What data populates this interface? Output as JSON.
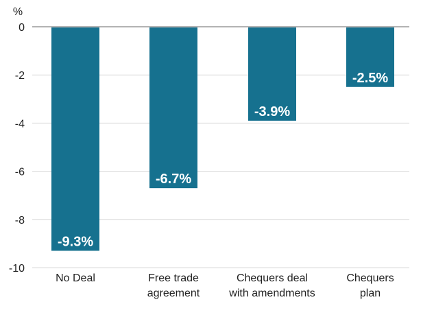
{
  "chart_data": {
    "type": "bar",
    "title": "",
    "xlabel": "",
    "ylabel": "%",
    "categories": [
      [
        "No Deal"
      ],
      [
        "Free trade",
        "agreement"
      ],
      [
        "Chequers deal",
        "with amendments"
      ],
      [
        "Chequers",
        "plan"
      ]
    ],
    "values": [
      -9.3,
      -6.7,
      -3.9,
      -2.5
    ],
    "data_labels": [
      "-9.3%",
      "-6.7%",
      "-3.9%",
      "-2.5%"
    ],
    "ylim": [
      -10,
      0
    ],
    "yticks": [
      0,
      -2,
      -4,
      -6,
      -8,
      -10
    ],
    "ytick_labels": [
      "0",
      "-2",
      "-4",
      "-6",
      "-8",
      "-10"
    ],
    "grid": true,
    "bar_color": "#16718f",
    "grid_color": "#d9d9d9",
    "zero_line_color": "#b3b3b3"
  }
}
